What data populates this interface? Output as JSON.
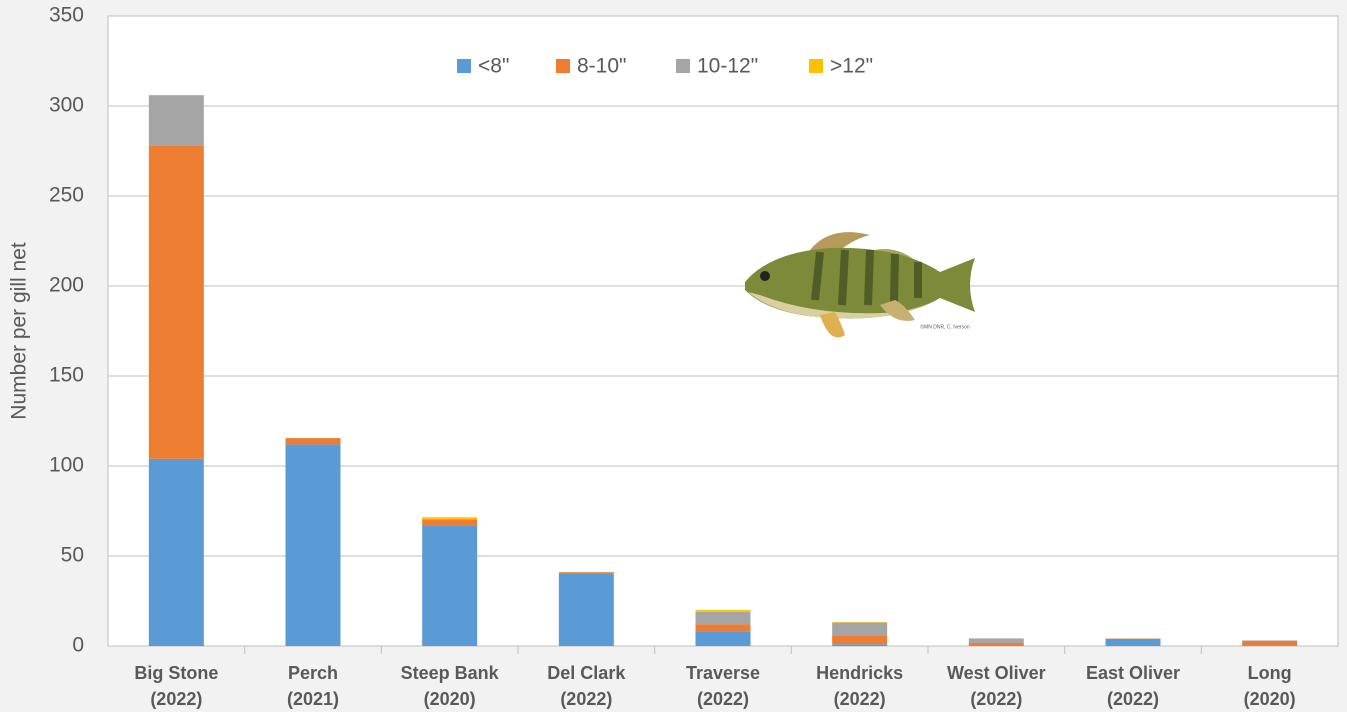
{
  "chart_data": {
    "type": "stacked_bar",
    "y_label": "Number per gill net",
    "annotation": "©MN DNR, C. Iverson",
    "categories": [
      [
        "Big Stone",
        "(2022)"
      ],
      [
        "Perch",
        "(2021)"
      ],
      [
        "Steep Bank",
        "(2020)"
      ],
      [
        "Del Clark",
        "(2022)"
      ],
      [
        "Traverse",
        "(2022)"
      ],
      [
        "Hendricks",
        "(2022)"
      ],
      [
        "West Oliver",
        "(2022)"
      ],
      [
        "East Oliver",
        "(2022)"
      ],
      [
        "Long",
        "(2020)"
      ]
    ],
    "series": [
      {
        "name": "<8\"",
        "color": "#5b9bd5",
        "values": [
          104,
          112,
          67,
          40.5,
          8,
          1,
          0.2,
          4,
          0.5
        ]
      },
      {
        "name": "8-10\"",
        "color": "#ed7d31",
        "values": [
          174,
          3.5,
          3,
          0.5,
          4,
          5,
          1.5,
          0.2,
          2.3
        ]
      },
      {
        "name": "10-12\"",
        "color": "#a5a5a5",
        "values": [
          28,
          0,
          0.5,
          0,
          7,
          7,
          2.5,
          0,
          0.3
        ]
      },
      {
        "name": ">12\"",
        "color": "#ffc000",
        "values": [
          0,
          0,
          1,
          0,
          1,
          0.3,
          0,
          0,
          0
        ]
      }
    ],
    "ylim": [
      0,
      350
    ],
    "yticks": [
      0,
      50,
      100,
      150,
      200,
      250,
      300,
      350
    ],
    "grid": true
  }
}
